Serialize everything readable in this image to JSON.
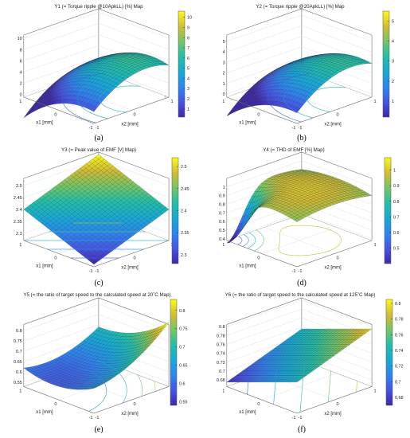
{
  "chart_data": [
    {
      "type": "surface",
      "title": "Y1 (= Torque ripple @10ApkLL) [%] Map",
      "xlabel": "x1 [mm]",
      "ylabel": "x2 [mm]",
      "x_ticks": [
        "-1",
        "0",
        "1"
      ],
      "y_ticks": [
        "-1",
        "0",
        "1"
      ],
      "z_ticks": [
        "0",
        "2",
        "4",
        "6",
        "8",
        "10"
      ],
      "zlim": [
        -0.5,
        10.6
      ],
      "colorbar_ticks": [
        "1",
        "2",
        "3",
        "4",
        "5",
        "6",
        "7",
        "8",
        "9",
        "10"
      ],
      "colorbar_range": [
        0.2,
        10.6
      ],
      "colormap": "parula",
      "surface_shape": "dome peaking near x1=-0.8, x2=0.2 at about 10.5, falling to about 0 at x1=1, x2=-1",
      "caption": "(a)"
    },
    {
      "type": "surface",
      "title": "Y2 (= Torque ripple @20ApkLL) [%] Map",
      "xlabel": "x1 [mm]",
      "ylabel": "x2 [mm]",
      "x_ticks": [
        "-1",
        "0",
        "1"
      ],
      "y_ticks": [
        "-1",
        "0",
        "1"
      ],
      "z_ticks": [
        "0",
        "1",
        "2",
        "3",
        "4",
        "5"
      ],
      "zlim": [
        -0.3,
        5.6
      ],
      "colorbar_ticks": [
        "1",
        "2",
        "3",
        "4",
        "5"
      ],
      "colorbar_range": [
        0.2,
        5.5
      ],
      "colormap": "parula",
      "surface_shape": "dome peaking near x1=-0.6, x2=0.4 at about 5.3, minimum about 0 near x1=1, x2=-1",
      "caption": "(b)"
    },
    {
      "type": "surface",
      "title": "Y3 (= Peak value of EMF [V] Map)",
      "xlabel": "x1 [mm]",
      "ylabel": "x2 [mm]",
      "x_ticks": [
        "-1",
        "0",
        "1"
      ],
      "y_ticks": [
        "-1",
        "0",
        "1"
      ],
      "z_ticks": [
        "2.3",
        "2.35",
        "2.4",
        "2.45",
        "2.5"
      ],
      "zlim": [
        2.27,
        2.53
      ],
      "colorbar_ticks": [
        "2.3",
        "2.35",
        "2.4",
        "2.45",
        "2.5"
      ],
      "colorbar_range": [
        2.28,
        2.52
      ],
      "colormap": "parula",
      "surface_shape": "tilted plane, about 2.52 at x1=1, x2=1 decreasing to about 2.28 at x1=-1, x2=-1",
      "caption": "(c)"
    },
    {
      "type": "surface",
      "title": "Y4 (= THD of EMF [%] Map)",
      "xlabel": "x1 [mm]",
      "ylabel": "x2 [mm]",
      "x_ticks": [
        "-1",
        "0",
        "1"
      ],
      "y_ticks": [
        "-1",
        "0",
        "1"
      ],
      "z_ticks": [
        "0.4",
        "0.5",
        "0.6",
        "0.7",
        "0.8",
        "0.9",
        "1"
      ],
      "zlim": [
        0.38,
        1.1
      ],
      "colorbar_ticks": [
        "0.5",
        "0.6",
        "0.7",
        "0.8",
        "0.9",
        "1"
      ],
      "colorbar_range": [
        0.4,
        1.08
      ],
      "colormap": "parula",
      "surface_shape": "broad dome around 1.0 with sharp drop to about 0.4 at x1=1, x2=-1",
      "caption": "(d)"
    },
    {
      "type": "surface",
      "title": "Y5 (= the ratio of target speed to the calculated speed at 20˚C Map)",
      "xlabel": "x1 [mm]",
      "ylabel": "x2 [mm]",
      "x_ticks": [
        "-1",
        "0",
        "1"
      ],
      "y_ticks": [
        "-1",
        "0",
        "1"
      ],
      "z_ticks": [
        "0.55",
        "0.6",
        "0.65",
        "0.7",
        "0.75",
        "0.8"
      ],
      "zlim": [
        0.53,
        0.83
      ],
      "colorbar_ticks": [
        "0.55",
        "0.6",
        "0.65",
        "0.7",
        "0.75",
        "0.8"
      ],
      "colorbar_range": [
        0.54,
        0.83
      ],
      "colormap": "parula",
      "surface_shape": "saddle, peak about 0.82 at x1=-1, x2=1 and about 0.75 at x1=1, x2=1, minimum about 0.55 in the middle",
      "caption": "(e)"
    },
    {
      "type": "surface",
      "title": "Y6 (= the ratio of target speed to the calculated speed at 125˚C Map)",
      "xlabel": "x1 [mm]",
      "ylabel": "x2 [mm]",
      "x_ticks": [
        "-1",
        "0",
        "1"
      ],
      "y_ticks": [
        "-1",
        "0",
        "1"
      ],
      "z_ticks": [
        "0.68",
        "0.7",
        "0.72",
        "0.74",
        "0.76",
        "0.78",
        "0.8"
      ],
      "zlim": [
        0.665,
        0.805
      ],
      "colorbar_ticks": [
        "0.68",
        "0.7",
        "0.72",
        "0.74",
        "0.76",
        "0.78",
        "0.8"
      ],
      "colorbar_range": [
        0.67,
        0.805
      ],
      "colormap": "parula",
      "surface_shape": "tilted plane about 0.80 at x1=-1, x2=1 descending to about 0.68 at x1=1, x2=-1",
      "caption": "(f)"
    }
  ]
}
